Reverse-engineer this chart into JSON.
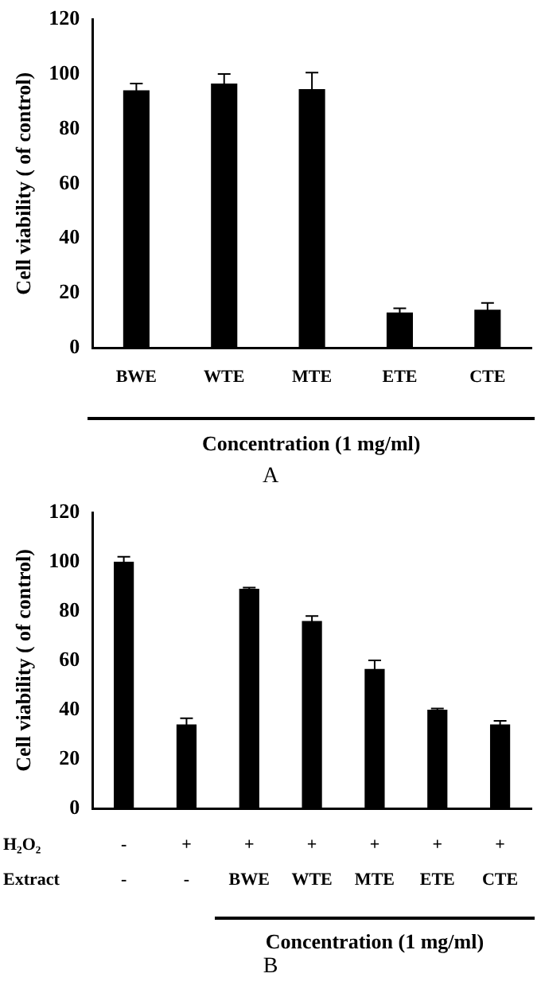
{
  "chart_data": [
    {
      "type": "bar",
      "categories": [
        "BWE",
        "WTE",
        "MTE",
        "ETE",
        "CTE"
      ],
      "values": [
        94,
        96.5,
        94.5,
        13,
        14
      ],
      "errors": [
        2.5,
        3.5,
        6,
        1.5,
        2.5
      ],
      "color": "#000000",
      "ylim": [
        0,
        120
      ],
      "yticks": [
        0,
        20,
        40,
        60,
        80,
        100,
        120
      ],
      "ylabel": "Cell viability ( of control)",
      "xlabel": "Concentration (1 mg/ml)",
      "annotations": [
        "A"
      ]
    },
    {
      "type": "bar",
      "categories": [
        "-\n-",
        "+\n-",
        "+\nBWE",
        "+\nWTE",
        "+\nMTE",
        "+\nETE",
        "+\nCTE"
      ],
      "values": [
        100,
        34,
        89,
        76,
        56.5,
        40,
        34
      ],
      "errors": [
        2,
        2.5,
        0.5,
        2,
        3.5,
        0.5,
        1.5
      ],
      "color": "#000000",
      "ylim": [
        0,
        120
      ],
      "yticks": [
        0,
        20,
        40,
        60,
        80,
        100,
        120
      ],
      "ylabel": "Cell viability ( of control)",
      "xlabel": "Concentration (1 mg/ml)",
      "annotations": [
        "H₂O₂",
        "Extract",
        "B"
      ]
    }
  ]
}
